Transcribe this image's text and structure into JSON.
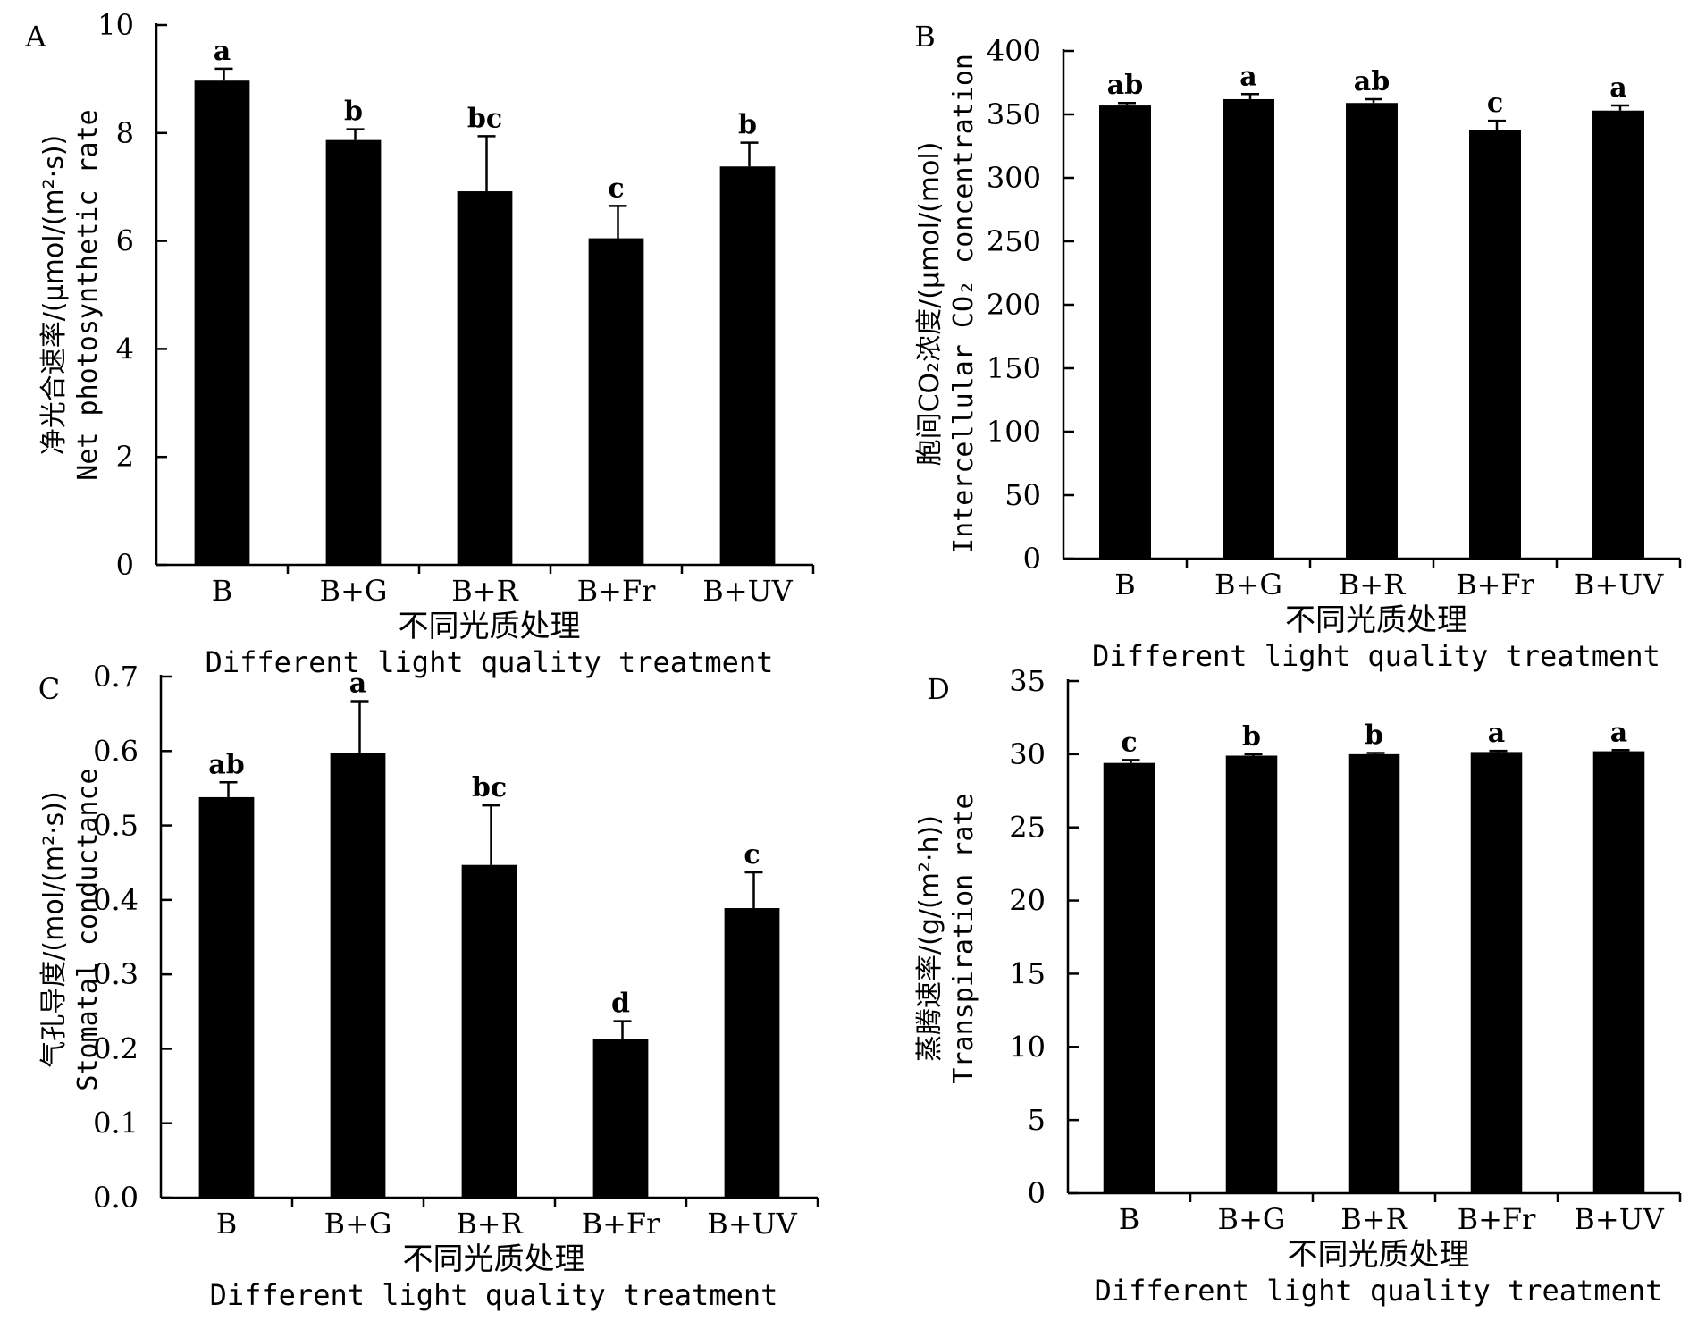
{
  "chart_data": [
    {
      "panel": "A",
      "type": "bar",
      "categories": [
        "B",
        "B+G",
        "B+R",
        "B+Fr",
        "B+UV"
      ],
      "values": [
        8.97,
        7.87,
        6.92,
        6.05,
        7.38
      ],
      "errors": [
        0.22,
        0.2,
        1.02,
        0.6,
        0.44
      ],
      "significance": [
        "a",
        "b",
        "bc",
        "c",
        "b"
      ],
      "ylim": [
        0,
        10
      ],
      "yticks": [
        "0",
        "2",
        "4",
        "6",
        "8",
        "10"
      ],
      "ylabel_cn": "净光合速率/(μmol/(m²·s))",
      "ylabel_en": "Net photosynthetic rate",
      "xlabel_cn": "不同光质处理",
      "xlabel_en": "Different light quality treatment"
    },
    {
      "panel": "B",
      "type": "bar",
      "categories": [
        "B",
        "B+G",
        "B+R",
        "B+Fr",
        "B+UV"
      ],
      "values": [
        357,
        362,
        359,
        338,
        353
      ],
      "errors": [
        2,
        4,
        3,
        7,
        4
      ],
      "significance": [
        "ab",
        "a",
        "ab",
        "c",
        "a"
      ],
      "ylim": [
        0,
        400
      ],
      "yticks": [
        "0",
        "50",
        "100",
        "150",
        "200",
        "250",
        "300",
        "350",
        "400"
      ],
      "ylabel_cn": "胞间CO₂浓度/(μmol/(mol)",
      "ylabel_en": "Intercellular CO₂ concentration",
      "xlabel_cn": "不同光质处理",
      "xlabel_en": "Different light quality treatment"
    },
    {
      "panel": "C",
      "type": "bar",
      "categories": [
        "B",
        "B+G",
        "B+R",
        "B+Fr",
        "B+UV"
      ],
      "values": [
        0.538,
        0.597,
        0.447,
        0.213,
        0.389
      ],
      "errors": [
        0.02,
        0.07,
        0.08,
        0.024,
        0.048
      ],
      "significance": [
        "ab",
        "a",
        "bc",
        "d",
        "c"
      ],
      "ylim": [
        0,
        0.7
      ],
      "yticks": [
        "0.0",
        "0.1",
        "0.2",
        "0.3",
        "0.4",
        "0.5",
        "0.6",
        "0.7"
      ],
      "ylabel_cn": "气孔导度/(mol/(m²·s))",
      "ylabel_en": "Stomatal conductance",
      "xlabel_cn": "不同光质处理",
      "xlabel_en": "Different light quality treatment"
    },
    {
      "panel": "D",
      "type": "bar",
      "categories": [
        "B",
        "B+G",
        "B+R",
        "B+Fr",
        "B+UV"
      ],
      "values": [
        29.4,
        29.9,
        30.0,
        30.15,
        30.2
      ],
      "errors": [
        0.2,
        0.1,
        0.08,
        0.08,
        0.08
      ],
      "significance": [
        "c",
        "b",
        "b",
        "a",
        "a"
      ],
      "ylim": [
        0,
        35
      ],
      "yticks": [
        "0",
        "5",
        "10",
        "15",
        "20",
        "25",
        "30",
        "35"
      ],
      "ylabel_cn": "蒸腾速率/(g/(m²·h))",
      "ylabel_en": "Transpiration rate",
      "xlabel_cn": "不同光质处理",
      "xlabel_en": "Different light quality treatment"
    }
  ]
}
